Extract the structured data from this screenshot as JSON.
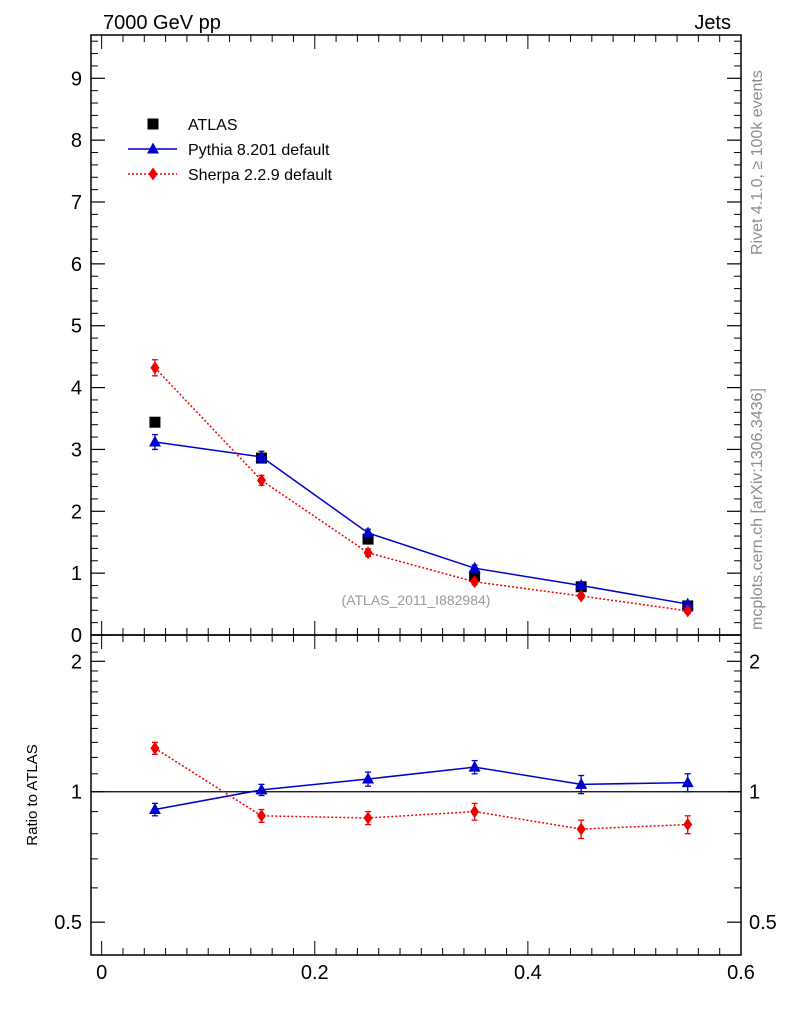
{
  "header": {
    "left": "7000 GeV pp",
    "right": "Jets"
  },
  "side_labels": {
    "top": "Rivet 4.1.0, ≥ 100k events",
    "bottom": "mcplots.cern.ch [arXiv:1306.3436]"
  },
  "watermark": "(ATLAS_2011_I882984)",
  "colors": {
    "data": "#000000",
    "pythia": "#0000cc",
    "sherpa": "#ee0000",
    "side_text": "#8c8c8c"
  },
  "chart_data": [
    {
      "type": "line",
      "panel": "main",
      "xlim": [
        -0.01,
        0.6
      ],
      "ylim": [
        0,
        9.7
      ],
      "yticks": [
        0,
        1,
        2,
        3,
        4,
        5,
        6,
        7,
        8,
        9
      ],
      "ytick_labels": [
        "0",
        "1",
        "2",
        "3",
        "4",
        "5",
        "6",
        "7",
        "8",
        "9"
      ],
      "xlabel": "",
      "ylabel": "",
      "legend_position": "top-left",
      "x": [
        0.05,
        0.15,
        0.25,
        0.35,
        0.45,
        0.55
      ],
      "series": [
        {
          "name": "ATLAS",
          "style": "markers",
          "marker": "square",
          "values": [
            3.44,
            2.86,
            1.55,
            0.95,
            0.78,
            0.47
          ],
          "errors": [
            0.03,
            0.03,
            0.02,
            0.02,
            0.02,
            0.02
          ]
        },
        {
          "name": "Pythia 8.201 default",
          "style": "solid",
          "marker": "triangle",
          "values": [
            3.12,
            2.88,
            1.65,
            1.08,
            0.8,
            0.5
          ],
          "errors": [
            0.12,
            0.09,
            0.06,
            0.05,
            0.05,
            0.04
          ]
        },
        {
          "name": "Sherpa 2.2.9 default",
          "style": "dotted",
          "marker": "diamond",
          "values": [
            4.32,
            2.5,
            1.33,
            0.86,
            0.63,
            0.39
          ],
          "errors": [
            0.13,
            0.08,
            0.06,
            0.05,
            0.04,
            0.04
          ]
        }
      ]
    },
    {
      "type": "line",
      "panel": "ratio",
      "xlim": [
        -0.01,
        0.6
      ],
      "ylim": [
        0.42,
        2.3
      ],
      "scale": "log",
      "ylabel": "Ratio to ATLAS",
      "yticks": [
        0.5,
        1,
        2
      ],
      "ytick_labels": [
        "0.5",
        "1",
        "2"
      ],
      "xticks": [
        0,
        0.2,
        0.4,
        0.6
      ],
      "xtick_labels": [
        "0",
        "0.2",
        "0.4",
        "0.6"
      ],
      "reference_line": 1,
      "x": [
        0.05,
        0.15,
        0.25,
        0.35,
        0.45,
        0.55
      ],
      "series": [
        {
          "name": "Pythia 8.201 default",
          "style": "solid",
          "marker": "triangle",
          "values": [
            0.91,
            1.01,
            1.07,
            1.14,
            1.04,
            1.05
          ],
          "errors": [
            0.03,
            0.03,
            0.04,
            0.04,
            0.05,
            0.05
          ]
        },
        {
          "name": "Sherpa 2.2.9 default",
          "style": "dotted",
          "marker": "diamond",
          "values": [
            1.26,
            0.88,
            0.87,
            0.9,
            0.82,
            0.84
          ],
          "errors": [
            0.04,
            0.03,
            0.03,
            0.04,
            0.04,
            0.04
          ]
        }
      ]
    }
  ]
}
